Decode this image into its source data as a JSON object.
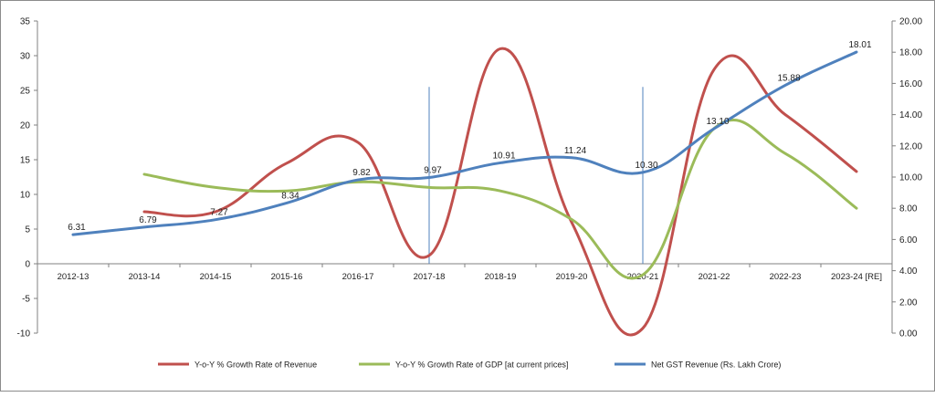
{
  "chart_data": {
    "type": "line",
    "categories": [
      "2012-13",
      "2013-14",
      "2014-15",
      "2015-16",
      "2016-17",
      "2017-18",
      "2018-19",
      "2019-20",
      "2020-21",
      "2021-22",
      "2022-23",
      "2023-24 [RE]"
    ],
    "y_left": {
      "min": -10,
      "max": 35,
      "ticks": [
        "-10",
        "-5",
        "0",
        "5",
        "10",
        "15",
        "20",
        "25",
        "30",
        "35"
      ]
    },
    "y_right": {
      "min": 0,
      "max": 20,
      "ticks": [
        "0.00",
        "2.00",
        "4.00",
        "6.00",
        "8.00",
        "10.00",
        "12.00",
        "14.00",
        "16.00",
        "18.00",
        "20.00"
      ]
    },
    "series": [
      {
        "name": "Y-o-Y % Growth Rate of Revenue",
        "color": "#c0504d",
        "axis": "left",
        "values": [
          null,
          7.5,
          7.5,
          14.5,
          17.5,
          1.2,
          31.0,
          6.0,
          -9.3,
          28.0,
          21.5,
          13.3
        ]
      },
      {
        "name": "Y-o-Y % Growth Rate of GDP [at current prices]",
        "color": "#9bbb59",
        "axis": "left",
        "values": [
          null,
          12.9,
          11.0,
          10.5,
          11.8,
          11.0,
          10.5,
          6.4,
          -1.6,
          19.5,
          15.9,
          8.0
        ]
      },
      {
        "name": "Net GST Revenue (Rs. Lakh Crore)",
        "color": "#4f81bd",
        "axis": "right",
        "values": [
          6.31,
          6.79,
          7.27,
          8.34,
          9.82,
          9.97,
          10.91,
          11.24,
          10.3,
          13.1,
          15.88,
          18.01
        ],
        "labels": [
          "6.31",
          "6.79",
          "7.27",
          "8.34",
          "9.82",
          "9.97",
          "10.91",
          "11.24",
          "10.30",
          "13.10",
          "15.88",
          "18.01"
        ]
      }
    ],
    "vlines": [
      "2017-18",
      "2020-21"
    ],
    "legend_position": "bottom"
  }
}
